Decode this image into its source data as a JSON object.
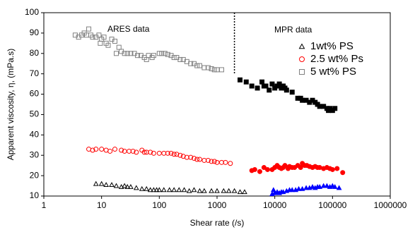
{
  "chart_data": {
    "type": "scatter",
    "xlabel": "Shear rate (/s)",
    "ylabel": "Apparent viscosity,  η, (mPa.s)",
    "annotations": [
      "ARES data",
      "MPR data"
    ],
    "divider": {
      "x": 2000,
      "ymin": 70
    },
    "xscale": "log",
    "xlim": [
      1,
      1000000
    ],
    "xticks": [
      1,
      10,
      100,
      1000,
      10000,
      100000,
      1000000
    ],
    "ylim": [
      10,
      100
    ],
    "yticks": [
      10,
      20,
      30,
      40,
      50,
      60,
      70,
      80,
      90,
      100
    ],
    "legend": "upper right",
    "series": [
      {
        "name": "1wt% PS",
        "marker": "triangle",
        "color": "#000000",
        "mpr_color": "#0000ff",
        "x": [
          8,
          10,
          12,
          15,
          18,
          22,
          25,
          28,
          32,
          40,
          50,
          60,
          70,
          80,
          90,
          100,
          120,
          150,
          180,
          220,
          270,
          330,
          400,
          500,
          600,
          800,
          1000,
          1300,
          1600,
          2000,
          2500,
          3000
        ],
        "values": [
          16,
          16,
          15.5,
          15.5,
          15,
          14.5,
          15,
          14.5,
          14.5,
          14,
          13.5,
          13.5,
          13,
          13,
          13,
          13,
          13,
          13,
          13,
          13,
          13,
          12.5,
          13,
          12.5,
          12.5,
          12.5,
          12.5,
          12.5,
          12.5,
          12.5,
          12,
          12
        ],
        "mpr_x": [
          9000,
          9500,
          10000,
          11000,
          12000,
          13000,
          14000,
          16000,
          18000,
          20000,
          23000,
          26000,
          30000,
          35000,
          40000,
          45000,
          50000,
          55000,
          60000,
          70000,
          80000,
          90000,
          100000,
          110000,
          130000
        ],
        "mpr_values": [
          11,
          13,
          11.5,
          12,
          11.5,
          12,
          12,
          12.5,
          13,
          13,
          13,
          13.5,
          13.5,
          14,
          14,
          14.5,
          14,
          14.5,
          14.5,
          15,
          15,
          14.5,
          15,
          14.5,
          14
        ]
      },
      {
        "name": "2.5 wt% Ps",
        "marker": "circle",
        "color": "#ff0000",
        "mpr_color": "#ff0000",
        "x": [
          6,
          7,
          8,
          10,
          12,
          14,
          17,
          22,
          25,
          30,
          35,
          40,
          50,
          55,
          60,
          70,
          80,
          100,
          120,
          140,
          160,
          180,
          200,
          230,
          260,
          300,
          350,
          400,
          450,
          500,
          600,
          700,
          800,
          900,
          1000,
          1200,
          1400,
          1700
        ],
        "values": [
          33,
          32.5,
          33,
          33,
          32.5,
          32,
          33,
          32.5,
          32,
          32,
          32,
          31.5,
          32.5,
          31.5,
          31.5,
          31.5,
          31,
          31,
          31,
          31,
          31,
          30.5,
          30.5,
          30,
          29.5,
          29,
          29,
          28.5,
          28,
          28,
          27.5,
          27.5,
          27,
          27,
          26.5,
          26.5,
          26.5,
          26
        ],
        "mpr_x": [
          4000,
          4500,
          5500,
          6500,
          7500,
          9000,
          10000,
          11000,
          12000,
          13000,
          14000,
          15000,
          17000,
          18000,
          20000,
          22000,
          25000,
          28000,
          30000,
          33000,
          36000,
          40000,
          45000,
          50000,
          55000,
          60000,
          70000,
          80000,
          90000,
          100000,
          120000,
          150000
        ],
        "mpr_values": [
          22.5,
          23,
          22,
          24,
          23,
          23,
          24,
          25,
          24,
          23.5,
          24,
          25,
          23.5,
          24.5,
          24,
          24,
          25,
          24,
          26,
          25,
          25,
          24.5,
          24,
          24.5,
          24,
          24,
          23.5,
          24,
          23.5,
          23,
          23.5,
          21.5
        ]
      },
      {
        "name": "5 wt% PS",
        "marker": "square",
        "color": "#808080",
        "mpr_color": "#000000",
        "x": [
          3.5,
          4,
          4.5,
          5,
          5.5,
          6,
          6.5,
          7,
          8,
          9,
          9.5,
          10,
          11,
          12,
          13,
          15,
          17,
          18,
          20,
          22,
          25,
          28,
          32,
          37,
          42,
          48,
          55,
          60,
          65,
          75,
          80,
          100,
          110,
          125,
          140,
          160,
          180,
          200,
          230,
          260,
          300,
          350,
          400,
          450,
          500,
          600,
          700,
          800,
          900,
          1000,
          1200
        ],
        "values": [
          89,
          88,
          89,
          90,
          89,
          92,
          89,
          88,
          88,
          89,
          85,
          87,
          88,
          85,
          84,
          87,
          86,
          80,
          83,
          81,
          80,
          80,
          80,
          80,
          79,
          79,
          78,
          77,
          79,
          78,
          79,
          80,
          80,
          80,
          79.5,
          79,
          78,
          78,
          77,
          77,
          76,
          75,
          75,
          74,
          74,
          73,
          73,
          72.5,
          72,
          72,
          72
        ],
        "mpr_x": [
          2500,
          3200,
          4000,
          5000,
          6000,
          6500,
          7000,
          8000,
          9000,
          10000,
          11000,
          12000,
          13000,
          14000,
          15000,
          16000,
          20000,
          25000,
          28000,
          30000,
          35000,
          40000,
          45000,
          50000,
          55000,
          60000,
          70000,
          80000,
          85000,
          90000,
          100000,
          110000
        ],
        "mpr_values": [
          67,
          66,
          64,
          63,
          66,
          64,
          64,
          62,
          65,
          63,
          64,
          65,
          63,
          64,
          63,
          62,
          61,
          58,
          58,
          57,
          57,
          56,
          57,
          56,
          55,
          54,
          54,
          53,
          52,
          53,
          52,
          53
        ]
      }
    ]
  }
}
